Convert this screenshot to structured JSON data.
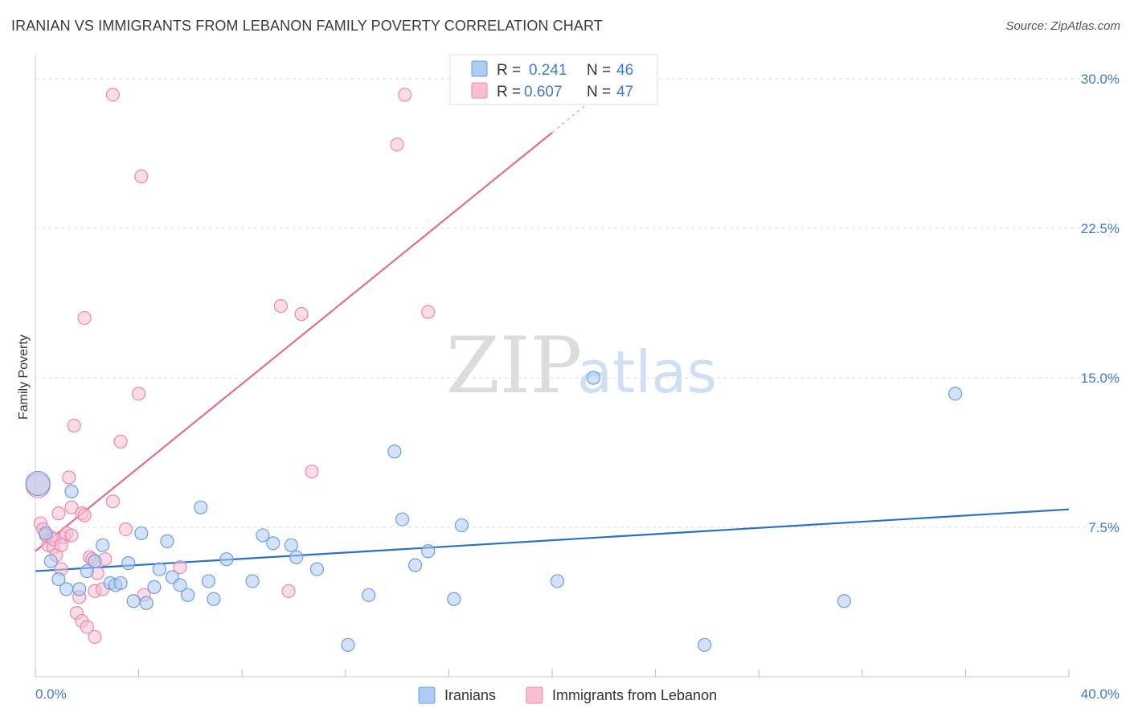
{
  "title": "IRANIAN VS IMMIGRANTS FROM LEBANON FAMILY POVERTY CORRELATION CHART",
  "source": "Source: ZipAtlas.com",
  "colors": {
    "blue_fill": "#aecbf0",
    "blue_stroke": "#6a9ee0",
    "blue_line": "#2a6fcf",
    "pink_fill": "#f8bfd2",
    "pink_stroke": "#e88aab",
    "pink_line": "#e36b96",
    "tick_text": "#3f7ad0",
    "grid": "#dddddd"
  },
  "legend": {
    "rows": [
      {
        "r_label": "R =",
        "r_value": "0.241",
        "n_label": "N =",
        "n_value": "46"
      },
      {
        "r_label": "R =",
        "r_value": "0.607",
        "n_label": "N =",
        "n_value": "47"
      }
    ]
  },
  "watermark": {
    "zip": "ZIP",
    "atlas": "atlas"
  },
  "chart_data": {
    "type": "scatter",
    "title": "IRANIAN VS IMMIGRANTS FROM LEBANON FAMILY POVERTY CORRELATION CHART",
    "xlabel": "",
    "ylabel": "Family Poverty",
    "xlim": [
      0,
      40
    ],
    "ylim": [
      0,
      30.5
    ],
    "x_tick_labels": [
      "0.0%",
      "40.0%"
    ],
    "y_ticks": [
      7.5,
      15.0,
      22.5,
      30.0
    ],
    "y_tick_labels": [
      "7.5%",
      "15.0%",
      "22.5%",
      "30.0%"
    ],
    "grid": true,
    "legend_position": "top-center",
    "series": [
      {
        "name": "Iranians",
        "color": "blue",
        "trend": {
          "x": [
            0,
            40
          ],
          "y": [
            5.3,
            8.4
          ]
        },
        "points": [
          {
            "x": 0.1,
            "y": 9.7,
            "big": true
          },
          {
            "x": 0.4,
            "y": 7.2
          },
          {
            "x": 0.6,
            "y": 5.8
          },
          {
            "x": 0.9,
            "y": 4.9
          },
          {
            "x": 1.2,
            "y": 4.4
          },
          {
            "x": 1.4,
            "y": 9.3
          },
          {
            "x": 1.7,
            "y": 4.4
          },
          {
            "x": 2.0,
            "y": 5.3
          },
          {
            "x": 2.3,
            "y": 5.8
          },
          {
            "x": 2.6,
            "y": 6.6
          },
          {
            "x": 2.9,
            "y": 4.7
          },
          {
            "x": 3.1,
            "y": 4.6
          },
          {
            "x": 3.3,
            "y": 4.7
          },
          {
            "x": 3.6,
            "y": 5.7
          },
          {
            "x": 3.8,
            "y": 3.8
          },
          {
            "x": 4.1,
            "y": 7.2
          },
          {
            "x": 4.3,
            "y": 3.7
          },
          {
            "x": 4.6,
            "y": 4.5
          },
          {
            "x": 4.8,
            "y": 5.4
          },
          {
            "x": 5.1,
            "y": 6.8
          },
          {
            "x": 5.3,
            "y": 5.0
          },
          {
            "x": 5.6,
            "y": 4.6
          },
          {
            "x": 5.9,
            "y": 4.1
          },
          {
            "x": 6.4,
            "y": 8.5
          },
          {
            "x": 6.7,
            "y": 4.8
          },
          {
            "x": 6.9,
            "y": 3.9
          },
          {
            "x": 7.4,
            "y": 5.9
          },
          {
            "x": 8.4,
            "y": 4.8
          },
          {
            "x": 8.8,
            "y": 7.1
          },
          {
            "x": 9.2,
            "y": 6.7
          },
          {
            "x": 9.9,
            "y": 6.6
          },
          {
            "x": 10.1,
            "y": 6.0
          },
          {
            "x": 10.9,
            "y": 5.4
          },
          {
            "x": 12.1,
            "y": 1.6
          },
          {
            "x": 12.9,
            "y": 4.1
          },
          {
            "x": 13.9,
            "y": 11.3
          },
          {
            "x": 14.2,
            "y": 7.9
          },
          {
            "x": 14.7,
            "y": 5.6
          },
          {
            "x": 15.2,
            "y": 6.3
          },
          {
            "x": 16.2,
            "y": 3.9
          },
          {
            "x": 16.5,
            "y": 7.6
          },
          {
            "x": 20.2,
            "y": 4.8
          },
          {
            "x": 21.6,
            "y": 15.0
          },
          {
            "x": 25.9,
            "y": 1.6
          },
          {
            "x": 31.3,
            "y": 3.8
          },
          {
            "x": 35.6,
            "y": 14.2
          }
        ]
      },
      {
        "name": "Immigrants from Lebanon",
        "color": "pink",
        "trend": {
          "x": [
            0,
            20.0
          ],
          "y": [
            6.3,
            27.3
          ]
        },
        "trend_dashed_to": {
          "x": 21.5,
          "y": 28.9
        },
        "points": [
          {
            "x": 0.1,
            "y": 9.6,
            "big": true
          },
          {
            "x": 0.2,
            "y": 7.7
          },
          {
            "x": 0.3,
            "y": 7.4
          },
          {
            "x": 0.5,
            "y": 6.6
          },
          {
            "x": 0.6,
            "y": 7.0
          },
          {
            "x": 0.7,
            "y": 6.5
          },
          {
            "x": 0.8,
            "y": 6.1
          },
          {
            "x": 0.9,
            "y": 8.2
          },
          {
            "x": 1.0,
            "y": 5.4
          },
          {
            "x": 1.1,
            "y": 7.0
          },
          {
            "x": 1.2,
            "y": 7.2
          },
          {
            "x": 1.3,
            "y": 10.0
          },
          {
            "x": 1.4,
            "y": 8.5
          },
          {
            "x": 1.4,
            "y": 7.1
          },
          {
            "x": 1.5,
            "y": 12.6
          },
          {
            "x": 1.6,
            "y": 3.2
          },
          {
            "x": 1.7,
            "y": 4.0
          },
          {
            "x": 1.8,
            "y": 8.2
          },
          {
            "x": 1.8,
            "y": 2.8
          },
          {
            "x": 1.9,
            "y": 8.1
          },
          {
            "x": 1.9,
            "y": 18.0
          },
          {
            "x": 2.0,
            "y": 2.5
          },
          {
            "x": 2.1,
            "y": 6.0
          },
          {
            "x": 2.2,
            "y": 5.9
          },
          {
            "x": 2.3,
            "y": 2.0
          },
          {
            "x": 2.3,
            "y": 4.3
          },
          {
            "x": 2.4,
            "y": 5.2
          },
          {
            "x": 2.7,
            "y": 5.9
          },
          {
            "x": 3.0,
            "y": 29.2
          },
          {
            "x": 3.0,
            "y": 8.8
          },
          {
            "x": 3.3,
            "y": 11.8
          },
          {
            "x": 3.5,
            "y": 7.4
          },
          {
            "x": 4.0,
            "y": 14.2
          },
          {
            "x": 4.1,
            "y": 25.1
          },
          {
            "x": 4.2,
            "y": 4.1
          },
          {
            "x": 5.6,
            "y": 5.5
          },
          {
            "x": 9.5,
            "y": 18.6
          },
          {
            "x": 9.8,
            "y": 4.3
          },
          {
            "x": 10.3,
            "y": 18.2
          },
          {
            "x": 10.7,
            "y": 10.3
          },
          {
            "x": 14.0,
            "y": 26.7
          },
          {
            "x": 14.3,
            "y": 29.2
          },
          {
            "x": 15.2,
            "y": 18.3
          },
          {
            "x": 0.4,
            "y": 7.1
          },
          {
            "x": 0.7,
            "y": 6.9
          },
          {
            "x": 1.0,
            "y": 6.6
          },
          {
            "x": 2.6,
            "y": 4.4
          }
        ]
      }
    ]
  }
}
